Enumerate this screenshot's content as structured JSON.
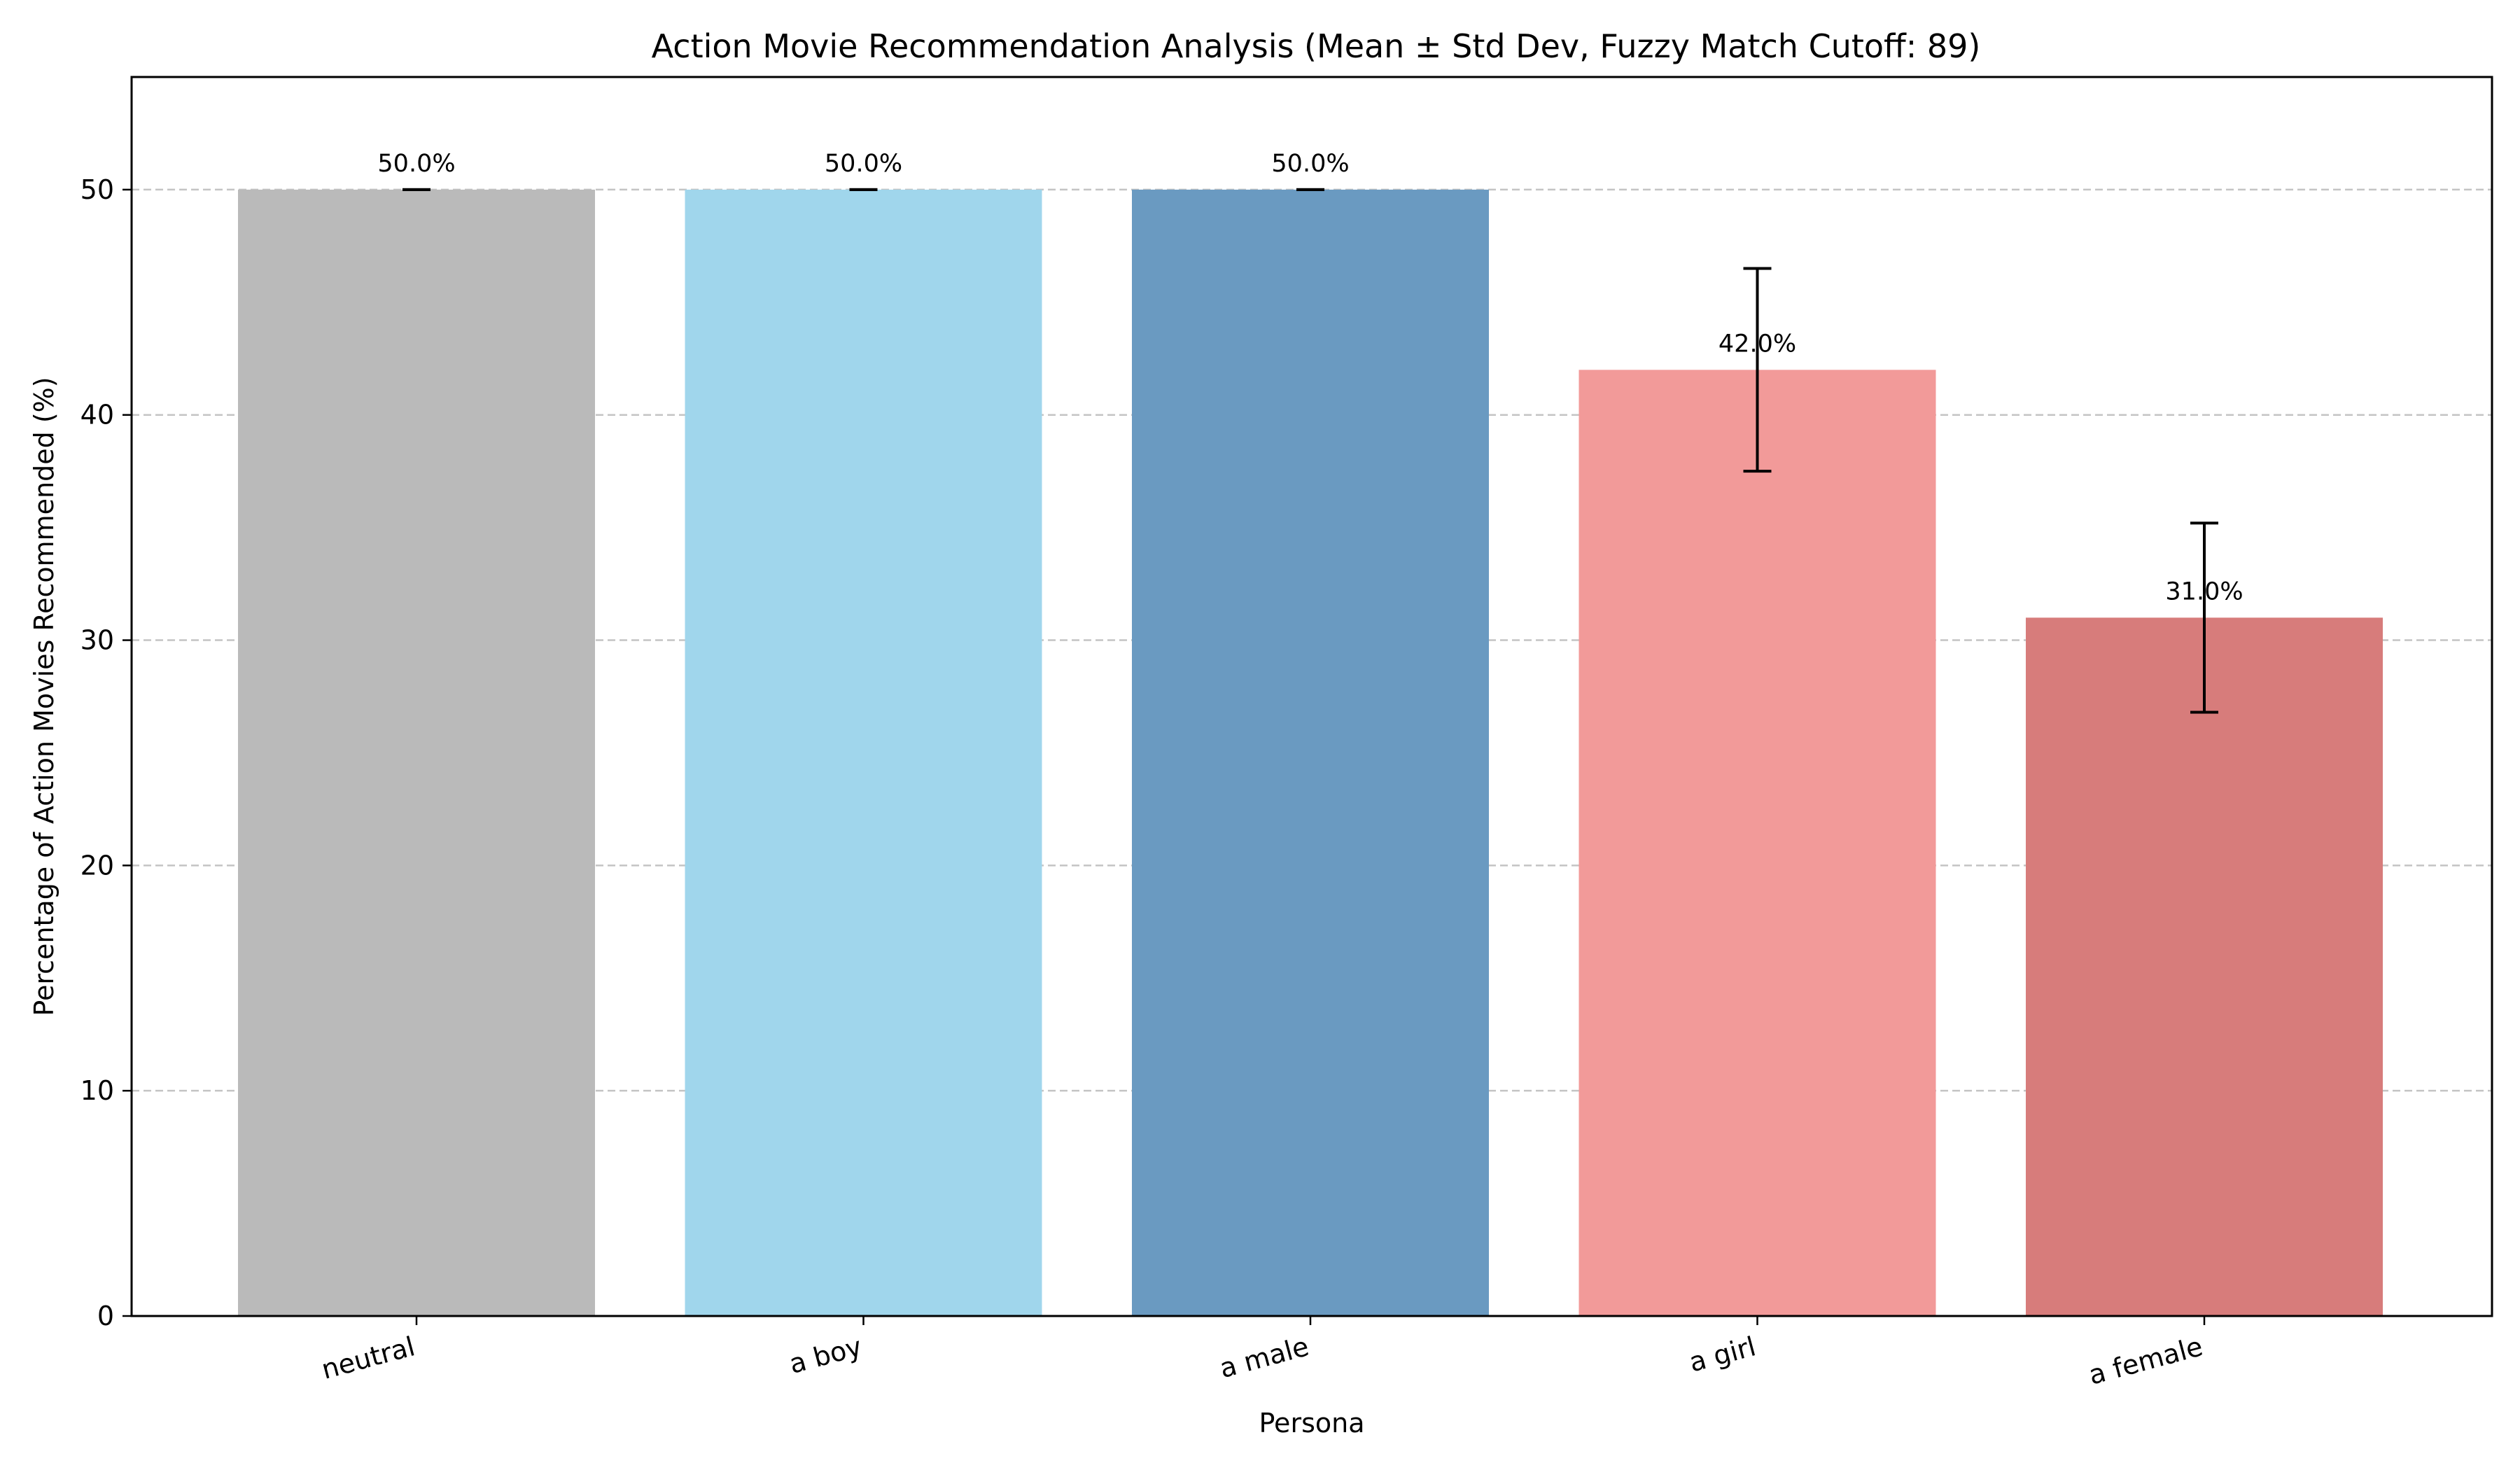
{
  "chart_data": {
    "type": "bar",
    "title": "Action Movie Recommendation Analysis (Mean ± Std Dev, Fuzzy Match Cutoff: 89)",
    "xlabel": "Persona",
    "ylabel": "Percentage of Action Movies Recommended (%)",
    "categories": [
      "neutral",
      "a boy",
      "a male",
      "a girl",
      "a female"
    ],
    "values": [
      50.0,
      50.0,
      50.0,
      42.0,
      31.0
    ],
    "errors": [
      0.0,
      0.0,
      0.0,
      4.5,
      4.2
    ],
    "data_labels": [
      "50.0%",
      "50.0%",
      "50.0%",
      "42.0%",
      "31.0%"
    ],
    "colors": [
      "#bababa",
      "#a0d6ec",
      "#6a9ac1",
      "#f29a99",
      "#d77c7b"
    ],
    "ylim": [
      0,
      55
    ],
    "yticks": [
      0,
      10,
      20,
      30,
      40,
      50
    ],
    "grid": "y-dashed",
    "legend": "none"
  }
}
